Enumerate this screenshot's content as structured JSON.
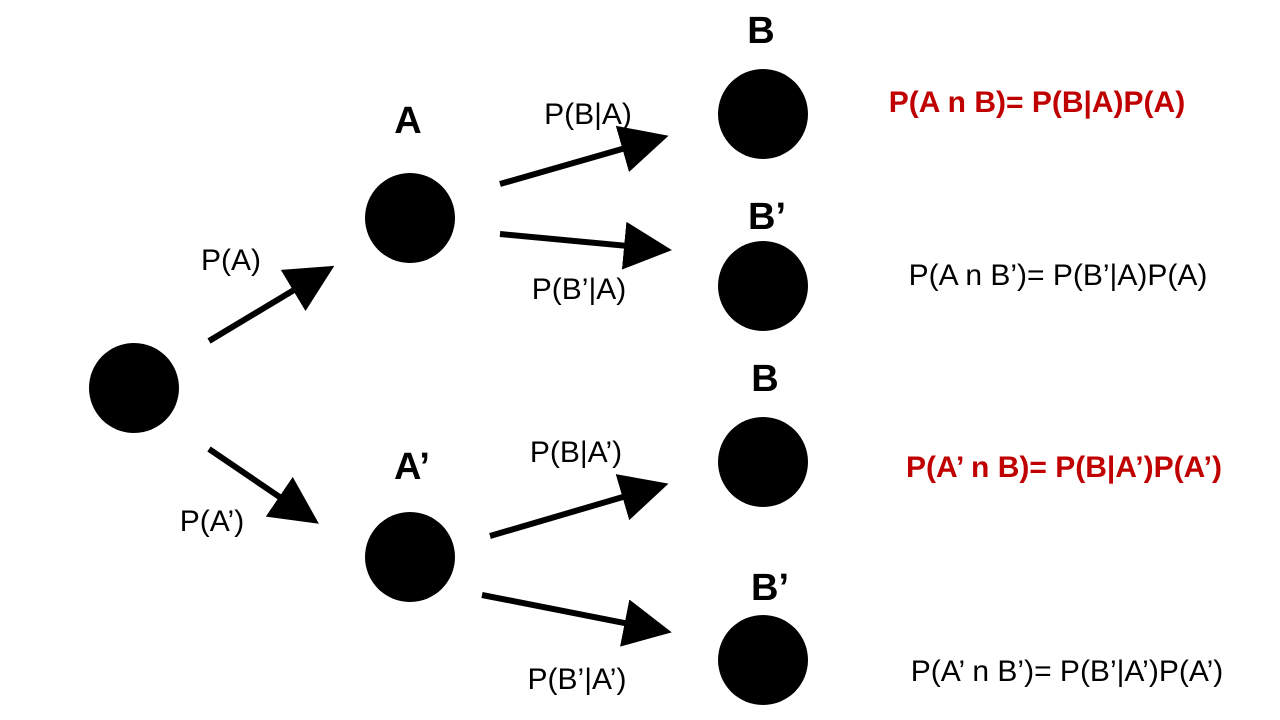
{
  "diagram": {
    "type": "probability-tree",
    "colors": {
      "node": "#000000",
      "edge": "#000000",
      "highlight": "#c00000",
      "text": "#000000"
    },
    "nodes": {
      "root": {
        "label": ""
      },
      "a": {
        "label": "A"
      },
      "a_not": {
        "label": "A’"
      },
      "a_b": {
        "label": "B"
      },
      "a_b_not": {
        "label": "B’"
      },
      "anot_b": {
        "label": "B"
      },
      "anot_b_not": {
        "label": "B’"
      }
    },
    "edges": {
      "root_a": "P(A)",
      "root_anot": "P(A’)",
      "a_b": "P(B|A)",
      "a_bnot": "P(B’|A)",
      "anot_b": "P(B|A’)",
      "anot_bnot": "P(B’|A’)"
    },
    "formulas": [
      {
        "text": "P(A n B)= P(B|A)P(A)",
        "highlight": true
      },
      {
        "text": "P(A n B’)= P(B’|A)P(A)",
        "highlight": false
      },
      {
        "text": "P(A’ n B)= P(B|A’)P(A’)",
        "highlight": true
      },
      {
        "text": "P(A’ n B’)= P(B’|A’)P(A’)",
        "highlight": false
      }
    ]
  }
}
